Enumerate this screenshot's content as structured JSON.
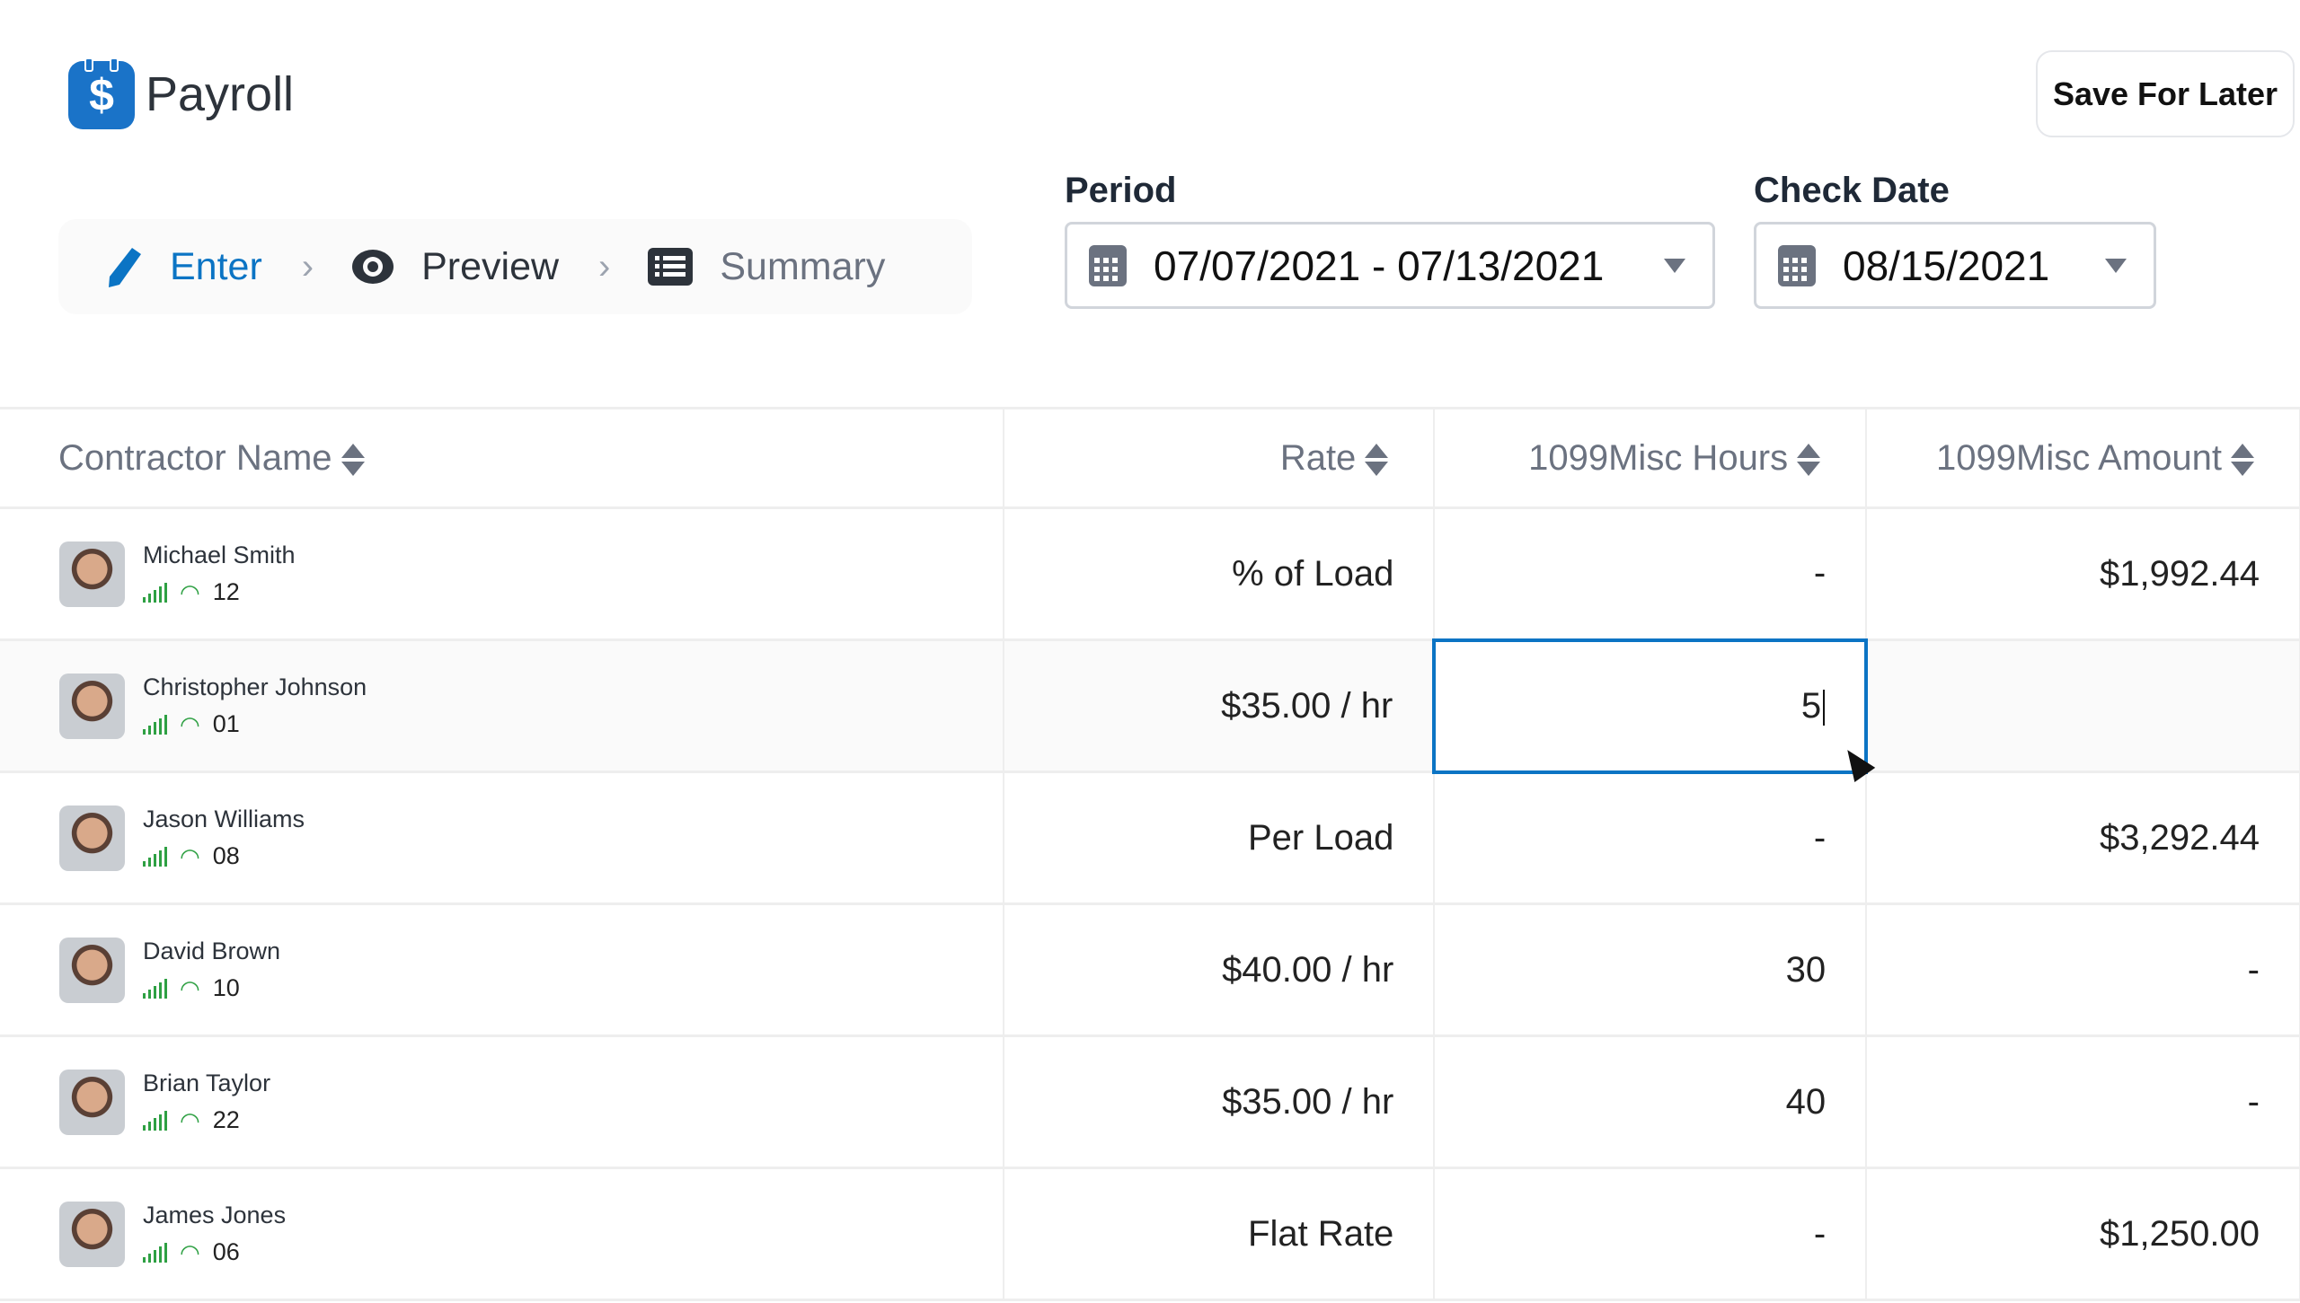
{
  "app": {
    "title": "Payroll",
    "logo_icon": "dollar-clipboard-icon",
    "save_label": "Save For Later"
  },
  "steps": [
    {
      "label": "Enter",
      "icon": "pencil-icon",
      "active": true
    },
    {
      "label": "Preview",
      "icon": "eye-icon"
    },
    {
      "label": "Summary",
      "icon": "list-icon"
    }
  ],
  "period": {
    "label": "Period",
    "value": "07/07/2021 - 07/13/2021"
  },
  "check_date": {
    "label": "Check Date",
    "value": "08/15/2021"
  },
  "colors": {
    "accent": "#0b74c4",
    "signal": "#2ea043"
  },
  "table": {
    "headers": [
      "Contractor Name",
      "Rate",
      "1099Misc Hours",
      "1099Misc Amount"
    ],
    "rows": [
      {
        "name": "Michael Smith",
        "id": "12",
        "rate": "% of Load",
        "hours": "-",
        "amount": "$1,992.44"
      },
      {
        "name": "Christopher Johnson",
        "id": "01",
        "rate": "$35.00 / hr",
        "hours": "5",
        "amount": ""
      },
      {
        "name": "Jason Williams",
        "id": "08",
        "rate": "Per Load",
        "hours": "-",
        "amount": "$3,292.44"
      },
      {
        "name": "David Brown",
        "id": "10",
        "rate": "$40.00 / hr",
        "hours": "30",
        "amount": "-"
      },
      {
        "name": "Brian Taylor",
        "id": "22",
        "rate": "$35.00 / hr",
        "hours": "40",
        "amount": "-"
      },
      {
        "name": "James Jones",
        "id": "06",
        "rate": "Flat Rate",
        "hours": "-",
        "amount": "$1,250.00"
      }
    ]
  }
}
